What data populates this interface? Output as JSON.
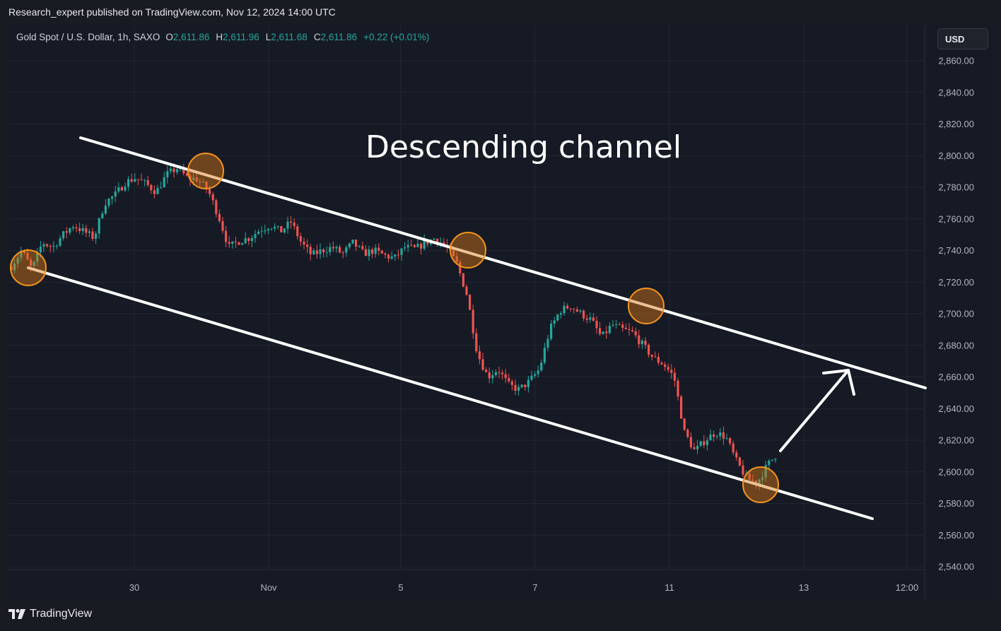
{
  "header": {
    "publish_line": "Research_expert published on TradingView.com, Nov 12, 2024 14:00 UTC"
  },
  "legend": {
    "symbol": "Gold Spot / U.S. Dollar, 1h, SAXO",
    "o_key": "O",
    "o_val": "2,611.86",
    "h_key": "H",
    "h_val": "2,611.96",
    "l_key": "L",
    "l_val": "2,611.68",
    "c_key": "C",
    "c_val": "2,611.86",
    "change": "+0.22 (+0.01%)"
  },
  "currency_button": "USD",
  "footer": {
    "brand": "TradingView"
  },
  "colors": {
    "background": "#161a25",
    "up": "#26a69a",
    "down": "#ef5350",
    "annotation": "#ffffff",
    "touch_circle": "#f7941d"
  },
  "chart_data": {
    "type": "candlestick",
    "symbol": "Gold Spot / U.S. Dollar",
    "interval": "1h",
    "title": "Descending channel",
    "x_ticks": [
      "30",
      "Nov",
      "5",
      "7",
      "11",
      "13",
      "12:00"
    ],
    "y_ticks": [
      "2,860.00",
      "2,840.00",
      "2,820.00",
      "2,800.00",
      "2,780.00",
      "2,760.00",
      "2,740.00",
      "2,720.00",
      "2,700.00",
      "2,680.00",
      "2,660.00",
      "2,640.00",
      "2,620.00",
      "2,600.00",
      "2,580.00",
      "2,560.00",
      "2,540.00"
    ],
    "y_range": [
      2536,
      2880
    ],
    "grid": true,
    "price_path": [
      2730,
      2740,
      2728,
      2745,
      2742,
      2750,
      2756,
      2752,
      2748,
      2770,
      2775,
      2783,
      2786,
      2782,
      2777,
      2788,
      2792,
      2786,
      2785,
      2778,
      2762,
      2742,
      2746,
      2748,
      2753,
      2756,
      2752,
      2758,
      2745,
      2737,
      2740,
      2742,
      2738,
      2745,
      2738,
      2740,
      2737,
      2735,
      2742,
      2741,
      2745,
      2748,
      2742,
      2732,
      2712,
      2675,
      2660,
      2665,
      2655,
      2652,
      2657,
      2665,
      2690,
      2702,
      2705,
      2700,
      2696,
      2685,
      2693,
      2690,
      2688,
      2680,
      2672,
      2668,
      2660,
      2625,
      2613,
      2620,
      2625,
      2622,
      2607,
      2596,
      2593,
      2604,
      2612
    ],
    "channel": {
      "upper": [
        {
          "date": "Oct 28",
          "price": 2811
        },
        {
          "date": "Nov 14",
          "price": 2654
        }
      ],
      "lower": [
        {
          "date": "Oct 28",
          "price": 2729
        },
        {
          "date": "Nov 14",
          "price": 2571
        }
      ]
    },
    "touch_points": [
      {
        "price": 2729,
        "line": "lower"
      },
      {
        "price": 2790,
        "line": "upper"
      },
      {
        "price": 2741,
        "line": "upper"
      },
      {
        "price": 2705,
        "line": "upper"
      },
      {
        "price": 2591,
        "line": "lower"
      }
    ],
    "projection_arrow": {
      "from_price": 2614,
      "to_price": 2668
    }
  }
}
